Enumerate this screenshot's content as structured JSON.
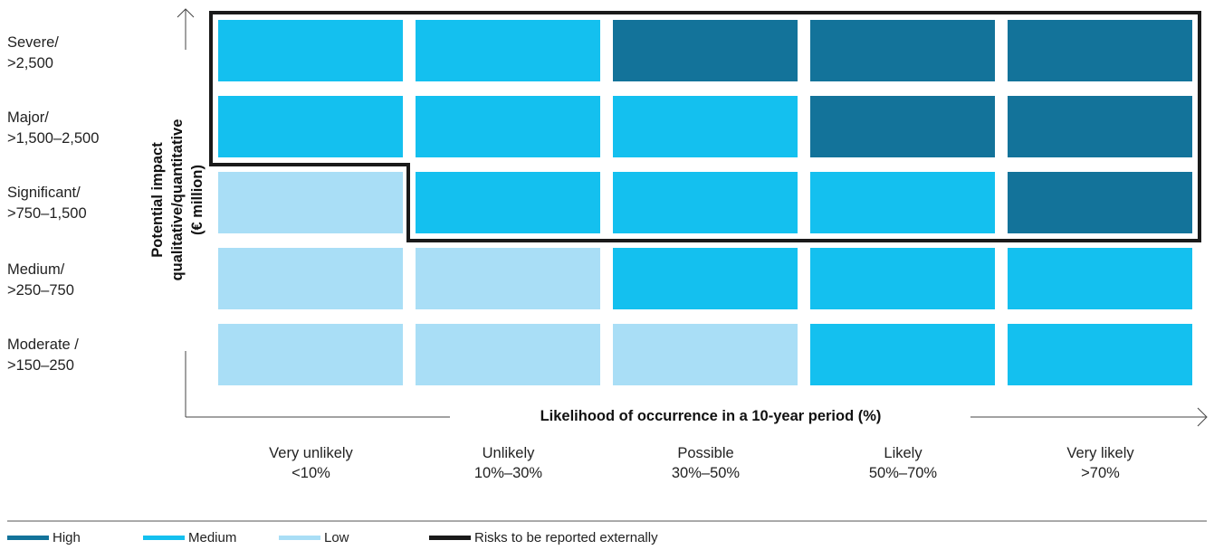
{
  "chart_data": {
    "type": "heatmap",
    "xlabel": "Likelihood of occurrence in a 10-year period (%)",
    "ylabel": [
      "Potential impact",
      "qualitative/quantitative",
      "(€ million)"
    ],
    "rows": [
      {
        "lines": [
          "Severe/",
          ">2,500"
        ]
      },
      {
        "lines": [
          "Major/",
          ">1,500–2,500"
        ]
      },
      {
        "lines": [
          "Significant/",
          ">750–1,500"
        ]
      },
      {
        "lines": [
          "Medium/",
          ">250–750"
        ]
      },
      {
        "lines": [
          "Moderate /",
          ">150–250"
        ]
      }
    ],
    "columns": [
      {
        "lines": [
          "Very unlikely",
          "<10%"
        ]
      },
      {
        "lines": [
          "Unlikely",
          "10%–30%"
        ]
      },
      {
        "lines": [
          "Possible",
          "30%–50%"
        ]
      },
      {
        "lines": [
          "Likely",
          "50%–70%"
        ]
      },
      {
        "lines": [
          "Very likely",
          ">70%"
        ]
      }
    ],
    "cells": [
      [
        "medium",
        "medium",
        "high",
        "high",
        "high"
      ],
      [
        "medium",
        "medium",
        "medium",
        "high",
        "high"
      ],
      [
        "low",
        "medium",
        "medium",
        "medium",
        "high"
      ],
      [
        "low",
        "low",
        "medium",
        "medium",
        "medium"
      ],
      [
        "low",
        "low",
        "low",
        "medium",
        "medium"
      ]
    ],
    "reported_externally": [
      [
        true,
        true,
        true,
        true,
        true
      ],
      [
        true,
        true,
        true,
        true,
        true
      ],
      [
        false,
        true,
        true,
        true,
        true
      ],
      [
        false,
        false,
        false,
        false,
        false
      ],
      [
        false,
        false,
        false,
        false,
        false
      ]
    ],
    "levels": {
      "high": {
        "label": "High",
        "color": "#13739a"
      },
      "medium": {
        "label": "Medium",
        "color": "#14c0ef"
      },
      "low": {
        "label": "Low",
        "color": "#a9def6"
      }
    },
    "outline": {
      "label": "Risks to be reported externally",
      "color": "#1a1a1a"
    },
    "legend_order": [
      "high",
      "medium",
      "low",
      "outline"
    ],
    "legend_position": "bottom-left",
    "grid": false
  }
}
